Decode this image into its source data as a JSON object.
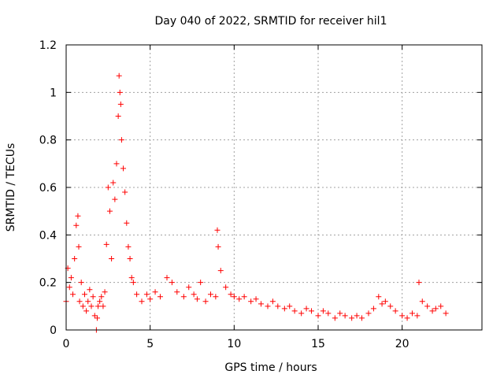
{
  "chart_data": {
    "type": "scatter",
    "title": "Day 040 of 2022, SRMTID for receiver hil1",
    "xlabel": "GPS time / hours",
    "ylabel": "SRMTID / TECUs",
    "xlim": [
      0,
      24.75
    ],
    "ylim": [
      0,
      1.2
    ],
    "x_ticks": [
      0,
      5,
      10,
      15,
      20
    ],
    "x_tick_labels": [
      "0",
      "5",
      "10",
      "15",
      "20"
    ],
    "y_ticks": [
      0,
      0.2,
      0.4,
      0.6,
      0.8,
      1.0,
      1.2
    ],
    "y_tick_labels": [
      "0",
      "0.2",
      "0.4",
      "0.6",
      "0.8",
      "1",
      "1.2"
    ],
    "grid": true,
    "marker": "+",
    "marker_color": "#ff0000",
    "grid_color": "#a0a0a0",
    "series": [
      {
        "name": "hil1",
        "x": [
          0.0,
          0.1,
          0.2,
          0.3,
          0.4,
          0.5,
          0.6,
          0.7,
          0.75,
          0.8,
          0.9,
          1.0,
          1.1,
          1.2,
          1.3,
          1.4,
          1.5,
          1.6,
          1.7,
          1.8,
          1.85,
          1.9,
          2.0,
          2.1,
          2.2,
          2.3,
          2.4,
          2.5,
          2.6,
          2.7,
          2.8,
          2.9,
          3.0,
          3.1,
          3.15,
          3.2,
          3.25,
          3.3,
          3.4,
          3.5,
          3.6,
          3.7,
          3.8,
          3.9,
          4.0,
          4.2,
          4.5,
          4.8,
          5.0,
          5.3,
          5.6,
          6.0,
          6.3,
          6.6,
          7.0,
          7.3,
          7.6,
          7.8,
          8.0,
          8.3,
          8.6,
          8.9,
          9.0,
          9.05,
          9.2,
          9.5,
          9.8,
          10.0,
          10.3,
          10.6,
          11.0,
          11.3,
          11.6,
          12.0,
          12.3,
          12.6,
          13.0,
          13.3,
          13.6,
          14.0,
          14.3,
          14.6,
          15.0,
          15.3,
          15.6,
          16.0,
          16.3,
          16.6,
          17.0,
          17.3,
          17.6,
          18.0,
          18.3,
          18.6,
          18.8,
          19.0,
          19.3,
          19.6,
          20.0,
          20.3,
          20.6,
          20.9,
          21.0,
          21.2,
          21.5,
          21.8,
          22.0,
          22.3,
          22.6
        ],
        "y": [
          0.12,
          0.26,
          0.18,
          0.22,
          0.15,
          0.3,
          0.44,
          0.48,
          0.35,
          0.12,
          0.2,
          0.1,
          0.15,
          0.08,
          0.12,
          0.17,
          0.1,
          0.14,
          0.06,
          0.0,
          0.05,
          0.1,
          0.12,
          0.14,
          0.1,
          0.16,
          0.36,
          0.6,
          0.5,
          0.3,
          0.62,
          0.55,
          0.7,
          0.9,
          1.07,
          1.0,
          0.95,
          0.8,
          0.68,
          0.58,
          0.45,
          0.35,
          0.3,
          0.22,
          0.2,
          0.15,
          0.12,
          0.15,
          0.13,
          0.16,
          0.14,
          0.22,
          0.2,
          0.16,
          0.14,
          0.18,
          0.15,
          0.13,
          0.2,
          0.12,
          0.15,
          0.14,
          0.42,
          0.35,
          0.25,
          0.18,
          0.15,
          0.14,
          0.13,
          0.14,
          0.12,
          0.13,
          0.11,
          0.1,
          0.12,
          0.1,
          0.09,
          0.1,
          0.08,
          0.07,
          0.09,
          0.08,
          0.06,
          0.08,
          0.07,
          0.05,
          0.07,
          0.06,
          0.05,
          0.06,
          0.05,
          0.07,
          0.09,
          0.14,
          0.11,
          0.12,
          0.1,
          0.08,
          0.06,
          0.05,
          0.07,
          0.06,
          0.2,
          0.12,
          0.1,
          0.08,
          0.09,
          0.1,
          0.07
        ]
      }
    ]
  }
}
